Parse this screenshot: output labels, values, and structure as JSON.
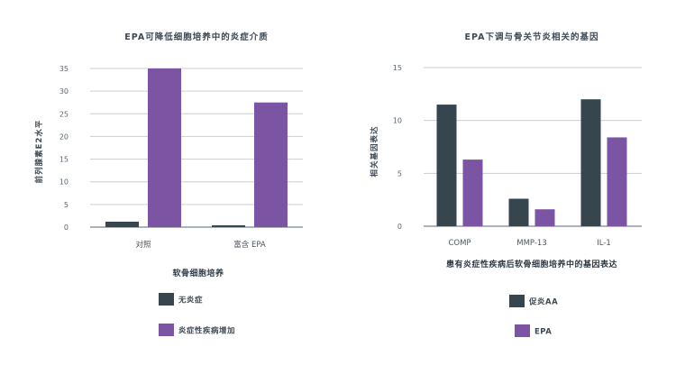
{
  "colors": {
    "dark": "#37454f",
    "purple": "#7b55a3"
  },
  "chart_data": [
    {
      "type": "bar",
      "title": "EPA可降低细胞培养中的炎症介质",
      "xlabel": "软骨细胞培养",
      "ylabel": "前列腺素E2水平",
      "ylim": [
        0,
        35
      ],
      "yticks": [
        0,
        5,
        10,
        15,
        20,
        25,
        30,
        35
      ],
      "categories": [
        "对照",
        "富含 EPA"
      ],
      "series": [
        {
          "name": "无炎症",
          "color": "#37454f",
          "values": [
            1.2,
            0.4
          ]
        },
        {
          "name": "炎症性疾病增加",
          "color": "#7b55a3",
          "values": [
            35,
            27.5
          ]
        }
      ]
    },
    {
      "type": "bar",
      "title": "EPA下调与骨关节炎相关的基因",
      "xlabel": "患有炎症性疾病后软骨细胞培养中的基因表达",
      "ylabel": "相关基因表达",
      "ylim": [
        0,
        15
      ],
      "yticks": [
        0,
        5,
        10,
        15
      ],
      "categories": [
        "COMP",
        "MMP-13",
        "IL-1"
      ],
      "series": [
        {
          "name": "促炎AA",
          "color": "#37454f",
          "values": [
            11.5,
            2.6,
            12
          ]
        },
        {
          "name": "EPA",
          "color": "#7b55a3",
          "values": [
            6.3,
            1.6,
            8.4
          ]
        }
      ]
    }
  ]
}
